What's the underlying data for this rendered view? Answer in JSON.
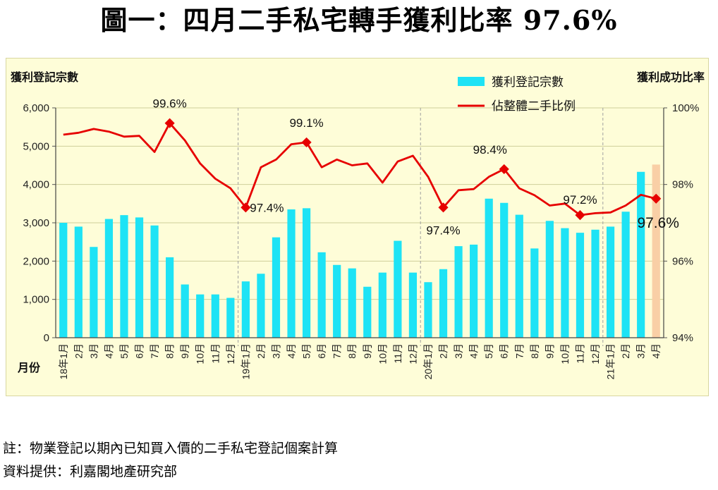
{
  "page_title": "圖一：四月二手私宅轉手獲利比率 97.6%",
  "notes": {
    "footnote": "註：物業登記以期內已知買入價的二手私宅登記個案計算",
    "source": "資料提供：利嘉閣地產研究部"
  },
  "colors": {
    "bar": "#1ee3f5",
    "bar_highlight": "#f9cfa6",
    "line": "#e60000",
    "background": "#fefdd8",
    "grid": "#cfcf9a"
  },
  "chart_data": {
    "type": "bar",
    "title": "圖一：四月二手私宅轉手獲利比率 97.6%",
    "xlabel": "月份",
    "ylabel_left": "獲利登記宗數",
    "ylabel_right": "獲利成功比率",
    "ylim_left": [
      0,
      6000
    ],
    "ylim_right": [
      94,
      100
    ],
    "left_ticks": [
      "0",
      "1,000",
      "2,000",
      "3,000",
      "4,000",
      "5,000",
      "6,000"
    ],
    "right_ticks": [
      "94%",
      "96%",
      "98%",
      "100%"
    ],
    "right_tick_values": [
      94,
      96,
      98,
      100
    ],
    "categories": [
      "18年1月",
      "2月",
      "3月",
      "4月",
      "5月",
      "6月",
      "7月",
      "8月",
      "9月",
      "10月",
      "11月",
      "12月",
      "19年1月",
      "2月",
      "3月",
      "4月",
      "5月",
      "6月",
      "7月",
      "8月",
      "9月",
      "10月",
      "11月",
      "12月",
      "20年1月",
      "2月",
      "3月",
      "4月",
      "5月",
      "6月",
      "7月",
      "8月",
      "9月",
      "10月",
      "11月",
      "12月",
      "21年1月",
      "2月",
      "3月",
      "4月"
    ],
    "year_dividers_after": [
      11,
      23,
      35
    ],
    "highlight_index": 39,
    "legend": {
      "position": "top-right"
    },
    "series": [
      {
        "name": "獲利登記宗數",
        "type": "bar",
        "axis": "left",
        "values": [
          3000,
          2900,
          2370,
          3100,
          3200,
          3140,
          2930,
          2100,
          1390,
          1130,
          1130,
          1040,
          1470,
          1670,
          2620,
          3350,
          3380,
          2230,
          1900,
          1810,
          1330,
          1700,
          2530,
          1700,
          1450,
          1790,
          2390,
          2430,
          3630,
          3520,
          3210,
          2330,
          3050,
          2860,
          2740,
          2820,
          2900,
          3290,
          4330,
          4520
        ]
      },
      {
        "name": "佔整體二手比例",
        "type": "line",
        "axis": "right",
        "values": [
          99.3,
          99.35,
          99.45,
          99.38,
          99.25,
          99.27,
          98.85,
          99.6,
          99.15,
          98.55,
          98.15,
          97.9,
          97.4,
          98.45,
          98.65,
          99.05,
          99.1,
          98.45,
          98.65,
          98.5,
          98.55,
          98.05,
          98.6,
          98.75,
          98.2,
          97.4,
          97.85,
          97.88,
          98.2,
          98.4,
          97.9,
          97.72,
          97.45,
          97.5,
          97.2,
          97.25,
          97.27,
          97.45,
          97.73,
          97.63
        ]
      }
    ],
    "annotations": [
      {
        "index": 7,
        "text": "99.6%"
      },
      {
        "index": 12,
        "text": "97.4%"
      },
      {
        "index": 16,
        "text": "99.1%"
      },
      {
        "index": 25,
        "text": "97.4%"
      },
      {
        "index": 29,
        "text": "98.4%"
      },
      {
        "index": 34,
        "text": "97.2%"
      },
      {
        "index": 39,
        "text": "97.6%"
      }
    ]
  }
}
